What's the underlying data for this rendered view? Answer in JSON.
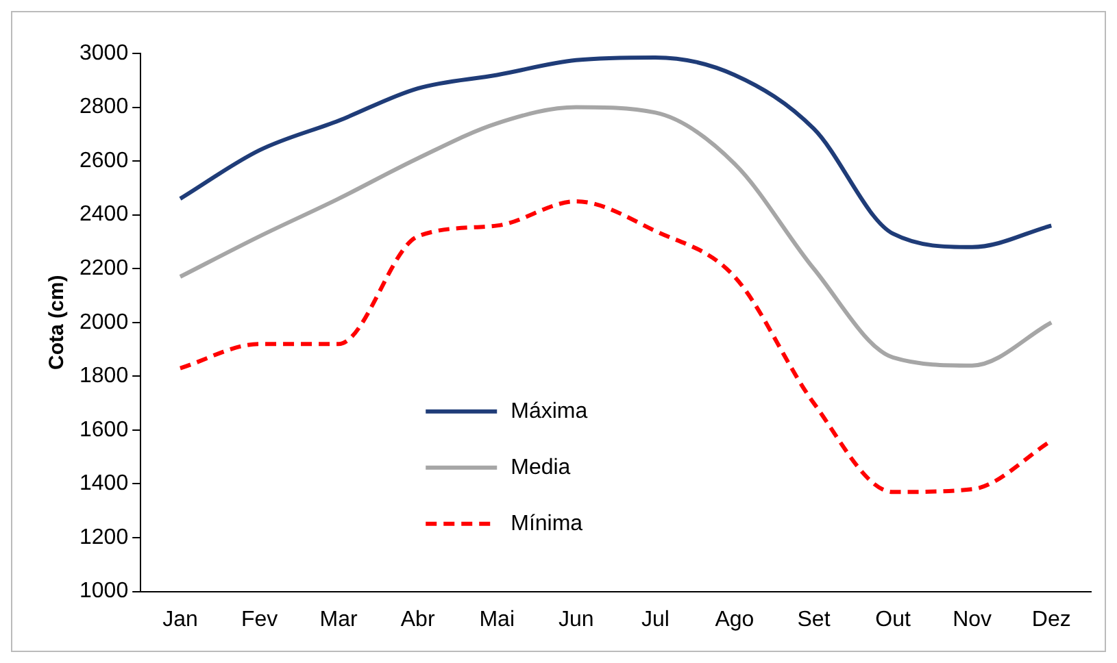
{
  "chart_data": {
    "type": "line",
    "ylabel": "Cota (cm)",
    "categories": [
      "Jan",
      "Fev",
      "Mar",
      "Abr",
      "Mai",
      "Jun",
      "Jul",
      "Ago",
      "Set",
      "Out",
      "Nov",
      "Dez"
    ],
    "series": [
      {
        "name": "Máxima",
        "color": "#1f3c78",
        "values": [
          2460,
          2640,
          2750,
          2870,
          2920,
          2975,
          2985,
          2920,
          2720,
          2330,
          2280,
          2360
        ]
      },
      {
        "name": "Media",
        "color": "#a6a6a6",
        "values": [
          2170,
          2320,
          2460,
          2610,
          2740,
          2800,
          2780,
          2590,
          2200,
          1870,
          1840,
          2000
        ]
      },
      {
        "name": "Mínima",
        "color": "#ff0000",
        "line_style": "dashed",
        "values": [
          1830,
          1920,
          1920,
          2320,
          2360,
          2450,
          2340,
          2170,
          1700,
          1370,
          1380,
          1560
        ]
      }
    ],
    "ylim": [
      1000,
      3000
    ],
    "yticks": [
      1000,
      1200,
      1400,
      1600,
      1800,
      2000,
      2200,
      2400,
      2600,
      2800,
      3000
    ],
    "grid": false,
    "legend": "bottom center",
    "marker": "none"
  }
}
